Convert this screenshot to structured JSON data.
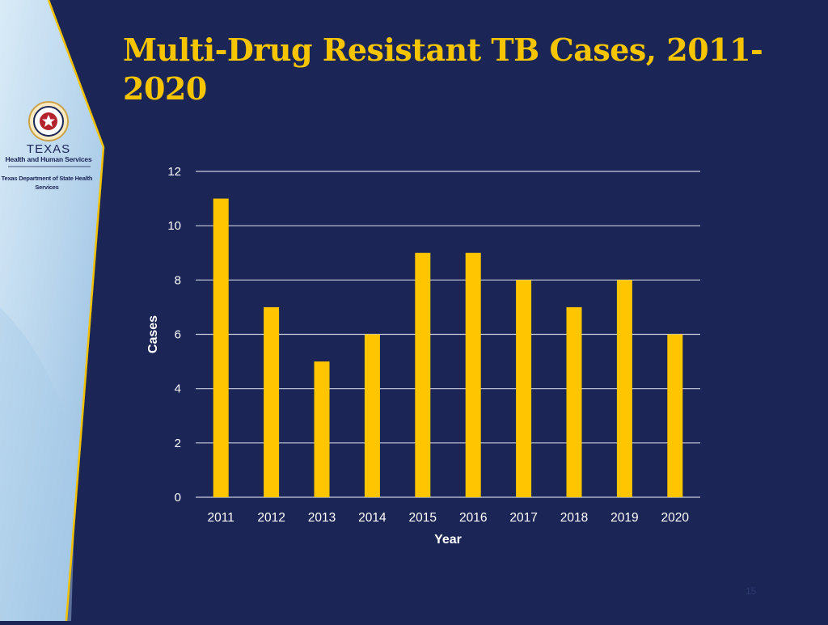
{
  "slide": {
    "title": "Multi-Drug Resistant TB Cases, 2011-2020",
    "page_number": "15"
  },
  "logo": {
    "line1": "TEXAS",
    "line2": "Health and Human Services",
    "line3": "Texas Department of State Health Services"
  },
  "colors": {
    "background": "#1b2656",
    "title": "#f6c500",
    "bar": "#ffc600",
    "gridline": "#c9cde0",
    "sidebar": "#c7def0"
  },
  "chart_data": {
    "type": "bar",
    "title": "",
    "xlabel": "Year",
    "ylabel": "Cases",
    "categories": [
      "2011",
      "2012",
      "2013",
      "2014",
      "2015",
      "2016",
      "2017",
      "2018",
      "2019",
      "2020"
    ],
    "values": [
      11,
      7,
      5,
      6,
      9,
      9,
      8,
      7,
      8,
      6
    ],
    "ylim": [
      0,
      12
    ],
    "yticks": [
      0,
      2,
      4,
      6,
      8,
      10,
      12
    ],
    "grid": true,
    "legend": "none"
  }
}
